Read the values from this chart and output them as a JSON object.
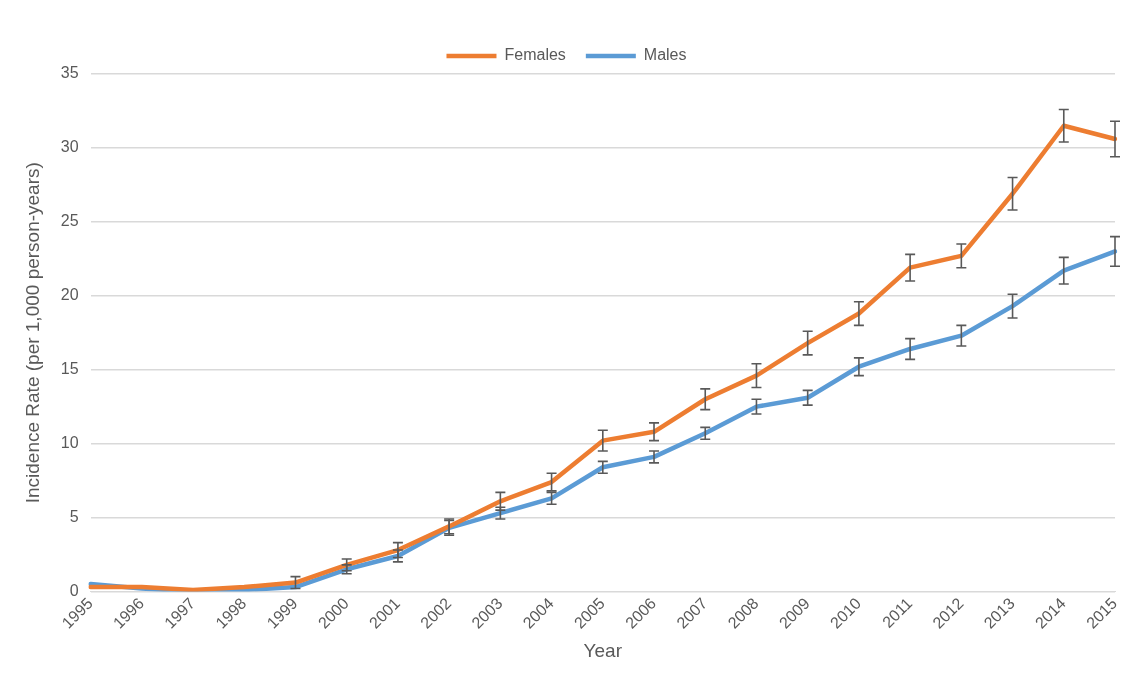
{
  "chart_data": {
    "type": "line",
    "xlabel": "Year",
    "ylabel": "Incidence Rate (per 1,000 person-years)",
    "categories": [
      "1995",
      "1996",
      "1997",
      "1998",
      "1999",
      "2000",
      "2001",
      "2002",
      "2003",
      "2004",
      "2005",
      "2006",
      "2007",
      "2008",
      "2009",
      "2010",
      "2011",
      "2012",
      "2013",
      "2014",
      "2015"
    ],
    "series": [
      {
        "name": "Females",
        "color": "#ed7d31",
        "values": [
          0.3,
          0.3,
          0.1,
          0.3,
          0.6,
          1.8,
          2.8,
          4.4,
          6.1,
          7.4,
          10.2,
          10.8,
          13.0,
          14.6,
          16.8,
          18.8,
          21.9,
          22.7,
          26.9,
          31.5,
          30.6
        ],
        "errors": [
          null,
          null,
          null,
          null,
          0.4,
          0.4,
          0.5,
          0.5,
          0.6,
          0.6,
          0.7,
          0.6,
          0.7,
          0.8,
          0.8,
          0.8,
          0.9,
          0.8,
          1.1,
          1.1,
          1.2
        ]
      },
      {
        "name": "Males",
        "color": "#5b9bd5",
        "values": [
          0.5,
          0.2,
          0.0,
          0.1,
          0.3,
          1.5,
          2.4,
          4.3,
          5.3,
          6.3,
          8.4,
          9.1,
          10.7,
          12.5,
          13.1,
          15.2,
          16.4,
          17.3,
          19.3,
          21.7,
          23.0
        ],
        "errors": [
          null,
          null,
          null,
          null,
          null,
          0.3,
          0.4,
          0.5,
          0.4,
          0.4,
          0.4,
          0.4,
          0.4,
          0.5,
          0.5,
          0.6,
          0.7,
          0.7,
          0.8,
          0.9,
          1.0
        ]
      }
    ],
    "ylim": [
      0,
      35
    ],
    "yticks": [
      0,
      5,
      10,
      15,
      20,
      25,
      30,
      35
    ],
    "grid": "y",
    "legend": "top",
    "marker": "none",
    "line_style": "solid"
  }
}
